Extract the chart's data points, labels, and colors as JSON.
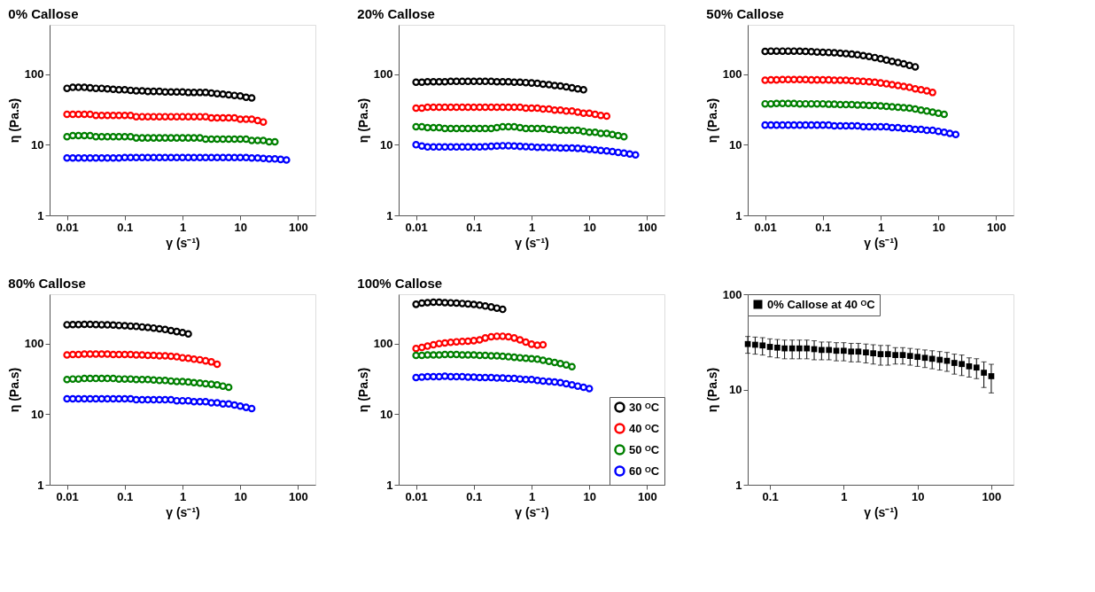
{
  "chart_data": [
    {
      "type": "scatter",
      "title": "0% Callose",
      "xlabel": "γ (s⁻¹)",
      "ylabel": "η (Pa.s)",
      "log": "xy",
      "marker": "circle",
      "xlim": [
        0.005,
        200
      ],
      "ylim": [
        1,
        500
      ],
      "xticks": [
        0.01,
        0.1,
        1,
        10,
        100
      ],
      "yticks": [
        1,
        10,
        100
      ],
      "series": [
        {
          "color": "#000000",
          "x": [
            0.01,
            0.0126,
            0.0158,
            0.02,
            0.0251,
            0.0316,
            0.0398,
            0.0501,
            0.0631,
            0.0794,
            0.1,
            0.126,
            0.158,
            0.2,
            0.251,
            0.316,
            0.398,
            0.501,
            0.631,
            0.794,
            1,
            1.26,
            1.58,
            2,
            2.51,
            3.16,
            3.98,
            5.01,
            6.31,
            7.94,
            10,
            12.6,
            15.8
          ],
          "values": [
            63,
            65,
            65,
            65,
            64,
            63,
            63,
            62,
            61,
            60,
            60,
            59,
            58,
            58,
            57,
            57,
            57,
            56,
            56,
            56,
            56,
            55,
            55,
            55,
            55,
            54,
            53,
            52,
            51,
            50,
            49,
            47,
            46
          ]
        },
        {
          "color": "#ff0000",
          "x": [
            0.01,
            0.0126,
            0.0158,
            0.02,
            0.0251,
            0.0316,
            0.0398,
            0.0501,
            0.0631,
            0.0794,
            0.1,
            0.126,
            0.158,
            0.2,
            0.251,
            0.316,
            0.398,
            0.501,
            0.631,
            0.794,
            1,
            1.26,
            1.58,
            2,
            2.51,
            3.16,
            3.98,
            5.01,
            6.31,
            7.94,
            10,
            12.6,
            15.8,
            20,
            25.1
          ],
          "values": [
            27,
            27,
            27,
            27,
            27,
            26,
            26,
            26,
            26,
            26,
            26,
            26,
            25,
            25,
            25,
            25,
            25,
            25,
            25,
            25,
            25,
            25,
            25,
            25,
            25,
            24,
            24,
            24,
            24,
            24,
            23,
            23,
            23,
            22,
            21
          ]
        },
        {
          "color": "#008000",
          "x": [
            0.01,
            0.0126,
            0.0158,
            0.02,
            0.0251,
            0.0316,
            0.0398,
            0.0501,
            0.0631,
            0.0794,
            0.1,
            0.126,
            0.158,
            0.2,
            0.251,
            0.316,
            0.398,
            0.501,
            0.631,
            0.794,
            1,
            1.26,
            1.58,
            2,
            2.51,
            3.16,
            3.98,
            5.01,
            6.31,
            7.94,
            10,
            12.6,
            15.8,
            20,
            25.1,
            31.6,
            39.8
          ],
          "values": [
            13,
            13.5,
            13.5,
            13.5,
            13.5,
            13,
            13,
            13,
            13,
            13,
            13,
            13,
            12.5,
            12.5,
            12.5,
            12.5,
            12.5,
            12.5,
            12.5,
            12.5,
            12.5,
            12.5,
            12.5,
            12.5,
            12,
            12,
            12,
            12,
            12,
            12,
            12,
            12,
            11.5,
            11.5,
            11.5,
            11,
            11
          ]
        },
        {
          "color": "#0000ff",
          "x": [
            0.01,
            0.0126,
            0.0158,
            0.02,
            0.0251,
            0.0316,
            0.0398,
            0.0501,
            0.0631,
            0.0794,
            0.1,
            0.126,
            0.158,
            0.2,
            0.251,
            0.316,
            0.398,
            0.501,
            0.631,
            0.794,
            1,
            1.26,
            1.58,
            2,
            2.51,
            3.16,
            3.98,
            5.01,
            6.31,
            7.94,
            10,
            12.6,
            15.8,
            20,
            25.1,
            31.6,
            39.8,
            50.1,
            63.1
          ],
          "values": [
            6.5,
            6.5,
            6.5,
            6.5,
            6.5,
            6.5,
            6.5,
            6.5,
            6.5,
            6.5,
            6.6,
            6.6,
            6.6,
            6.6,
            6.6,
            6.6,
            6.6,
            6.6,
            6.6,
            6.6,
            6.6,
            6.6,
            6.6,
            6.6,
            6.6,
            6.6,
            6.6,
            6.6,
            6.6,
            6.6,
            6.6,
            6.6,
            6.5,
            6.5,
            6.4,
            6.3,
            6.3,
            6.2,
            6.1
          ]
        }
      ]
    },
    {
      "type": "scatter",
      "title": "20% Callose",
      "xlabel": "γ (s⁻¹)",
      "ylabel": "η (Pa.s)",
      "log": "xy",
      "marker": "circle",
      "xlim": [
        0.005,
        200
      ],
      "ylim": [
        1,
        500
      ],
      "xticks": [
        0.01,
        0.1,
        1,
        10,
        100
      ],
      "yticks": [
        1,
        10,
        100
      ],
      "series": [
        {
          "color": "#000000",
          "x": [
            0.01,
            0.0126,
            0.0158,
            0.02,
            0.0251,
            0.0316,
            0.0398,
            0.0501,
            0.0631,
            0.0794,
            0.1,
            0.126,
            0.158,
            0.2,
            0.251,
            0.316,
            0.398,
            0.501,
            0.631,
            0.794,
            1,
            1.26,
            1.58,
            2,
            2.51,
            3.16,
            3.98,
            5.01,
            6.31,
            7.94
          ],
          "values": [
            77,
            77,
            78,
            78,
            78,
            78,
            79,
            79,
            79,
            79,
            79,
            79,
            79,
            79,
            78,
            78,
            78,
            77,
            77,
            76,
            75,
            74,
            72,
            71,
            69,
            68,
            66,
            64,
            62,
            60
          ]
        },
        {
          "color": "#ff0000",
          "x": [
            0.01,
            0.0126,
            0.0158,
            0.02,
            0.0251,
            0.0316,
            0.0398,
            0.0501,
            0.0631,
            0.0794,
            0.1,
            0.126,
            0.158,
            0.2,
            0.251,
            0.316,
            0.398,
            0.501,
            0.631,
            0.794,
            1,
            1.26,
            1.58,
            2,
            2.51,
            3.16,
            3.98,
            5.01,
            6.31,
            7.94,
            10,
            12.6,
            15.8,
            20
          ],
          "values": [
            33,
            33,
            34,
            34,
            34,
            34,
            34,
            34,
            34,
            34,
            34,
            34,
            34,
            34,
            34,
            34,
            34,
            34,
            34,
            33,
            33,
            33,
            32,
            32,
            31,
            31,
            30,
            30,
            29,
            28,
            28,
            27,
            26,
            25.5
          ]
        },
        {
          "color": "#008000",
          "x": [
            0.01,
            0.0126,
            0.0158,
            0.02,
            0.0251,
            0.0316,
            0.0398,
            0.0501,
            0.0631,
            0.0794,
            0.1,
            0.126,
            0.158,
            0.2,
            0.251,
            0.316,
            0.398,
            0.501,
            0.631,
            0.794,
            1,
            1.26,
            1.58,
            2,
            2.51,
            3.16,
            3.98,
            5.01,
            6.31,
            7.94,
            10,
            12.6,
            15.8,
            20,
            25.1,
            31.6,
            39.8
          ],
          "values": [
            18,
            18,
            17.5,
            17.5,
            17.5,
            17,
            17,
            17,
            17,
            17,
            17,
            17,
            17,
            17,
            17.5,
            18,
            18,
            18,
            17.5,
            17,
            17,
            17,
            17,
            16.5,
            16.5,
            16,
            16,
            16,
            16,
            15.5,
            15,
            15,
            14.5,
            14.5,
            14,
            13.5,
            13
          ]
        },
        {
          "color": "#0000ff",
          "x": [
            0.01,
            0.0126,
            0.0158,
            0.02,
            0.0251,
            0.0316,
            0.0398,
            0.0501,
            0.0631,
            0.0794,
            0.1,
            0.126,
            0.158,
            0.2,
            0.251,
            0.316,
            0.398,
            0.501,
            0.631,
            0.794,
            1,
            1.26,
            1.58,
            2,
            2.51,
            3.16,
            3.98,
            5.01,
            6.31,
            7.94,
            10,
            12.6,
            15.8,
            20,
            25.1,
            31.6,
            39.8,
            50.1,
            63.1
          ],
          "values": [
            10,
            9.6,
            9.3,
            9.3,
            9.3,
            9.3,
            9.3,
            9.3,
            9.3,
            9.3,
            9.3,
            9.3,
            9.4,
            9.5,
            9.6,
            9.7,
            9.7,
            9.6,
            9.5,
            9.4,
            9.3,
            9.2,
            9.2,
            9.1,
            9.1,
            9,
            9,
            9,
            8.9,
            8.8,
            8.6,
            8.5,
            8.3,
            8.2,
            8,
            7.8,
            7.6,
            7.4,
            7.2
          ]
        }
      ]
    },
    {
      "type": "scatter",
      "title": "50% Callose",
      "xlabel": "γ (s⁻¹)",
      "ylabel": "η (Pa.s)",
      "log": "xy",
      "marker": "circle",
      "xlim": [
        0.005,
        200
      ],
      "ylim": [
        1,
        500
      ],
      "xticks": [
        0.01,
        0.1,
        1,
        10,
        100
      ],
      "yticks": [
        1,
        10,
        100
      ],
      "series": [
        {
          "color": "#000000",
          "x": [
            0.01,
            0.0126,
            0.0158,
            0.02,
            0.0251,
            0.0316,
            0.0398,
            0.0501,
            0.0631,
            0.0794,
            0.1,
            0.126,
            0.158,
            0.2,
            0.251,
            0.316,
            0.398,
            0.501,
            0.631,
            0.794,
            1,
            1.26,
            1.58,
            2,
            2.51,
            3.16,
            3.98
          ],
          "values": [
            210,
            212,
            212,
            212,
            212,
            212,
            211,
            210,
            208,
            206,
            204,
            203,
            201,
            198,
            195,
            192,
            188,
            183,
            178,
            172,
            165,
            158,
            152,
            146,
            140,
            133,
            127
          ]
        },
        {
          "color": "#ff0000",
          "x": [
            0.01,
            0.0126,
            0.0158,
            0.02,
            0.0251,
            0.0316,
            0.0398,
            0.0501,
            0.0631,
            0.0794,
            0.1,
            0.126,
            0.158,
            0.2,
            0.251,
            0.316,
            0.398,
            0.501,
            0.631,
            0.794,
            1,
            1.26,
            1.58,
            2,
            2.51,
            3.16,
            3.98,
            5.01,
            6.31,
            7.94
          ],
          "values": [
            82,
            83,
            83,
            84,
            84,
            84,
            84,
            84,
            83,
            83,
            83,
            83,
            82,
            82,
            82,
            81,
            80,
            79,
            78,
            77,
            75,
            73,
            71,
            69,
            67,
            65,
            62,
            60,
            58,
            55
          ]
        },
        {
          "color": "#008000",
          "x": [
            0.01,
            0.0126,
            0.0158,
            0.02,
            0.0251,
            0.0316,
            0.0398,
            0.0501,
            0.0631,
            0.0794,
            0.1,
            0.126,
            0.158,
            0.2,
            0.251,
            0.316,
            0.398,
            0.501,
            0.631,
            0.794,
            1,
            1.26,
            1.58,
            2,
            2.51,
            3.16,
            3.98,
            5.01,
            6.31,
            7.94,
            10,
            12.6
          ],
          "values": [
            38,
            38,
            38.5,
            38.5,
            38.5,
            38.5,
            38,
            38,
            38,
            38,
            38,
            37.5,
            37.5,
            37,
            37,
            37,
            36.5,
            36.5,
            36,
            36,
            35.5,
            35,
            34.5,
            34,
            33.5,
            33,
            32,
            31,
            30,
            29,
            28,
            27
          ]
        },
        {
          "color": "#0000ff",
          "x": [
            0.01,
            0.0126,
            0.0158,
            0.02,
            0.0251,
            0.0316,
            0.0398,
            0.0501,
            0.0631,
            0.0794,
            0.1,
            0.126,
            0.158,
            0.2,
            0.251,
            0.316,
            0.398,
            0.501,
            0.631,
            0.794,
            1,
            1.26,
            1.58,
            2,
            2.51,
            3.16,
            3.98,
            5.01,
            6.31,
            7.94,
            10,
            12.6,
            15.8,
            20
          ],
          "values": [
            19,
            19,
            19,
            19,
            19,
            19,
            19,
            19,
            19,
            19,
            19,
            19,
            18.5,
            18.5,
            18.5,
            18.5,
            18.5,
            18,
            18,
            18,
            18,
            18,
            17.5,
            17.5,
            17,
            17,
            16.5,
            16.5,
            16,
            16,
            15.5,
            15,
            14.5,
            14
          ]
        }
      ]
    },
    {
      "type": "scatter",
      "title": "80% Callose",
      "xlabel": "γ (s⁻¹)",
      "ylabel": "η (Pa.s)",
      "log": "xy",
      "marker": "circle",
      "xlim": [
        0.005,
        200
      ],
      "ylim": [
        1,
        500
      ],
      "xticks": [
        0.01,
        0.1,
        1,
        10,
        100
      ],
      "yticks": [
        1,
        10,
        100
      ],
      "series": [
        {
          "color": "#000000",
          "x": [
            0.01,
            0.0126,
            0.0158,
            0.02,
            0.0251,
            0.0316,
            0.0398,
            0.0501,
            0.0631,
            0.0794,
            0.1,
            0.126,
            0.158,
            0.2,
            0.251,
            0.316,
            0.398,
            0.501,
            0.631,
            0.794,
            1,
            1.26
          ],
          "values": [
            185,
            186,
            186,
            187,
            187,
            186,
            185,
            184,
            183,
            181,
            179,
            177,
            175,
            172,
            169,
            166,
            162,
            158,
            153,
            148,
            143,
            137
          ]
        },
        {
          "color": "#ff0000",
          "x": [
            0.01,
            0.0126,
            0.0158,
            0.02,
            0.0251,
            0.0316,
            0.0398,
            0.0501,
            0.0631,
            0.0794,
            0.1,
            0.126,
            0.158,
            0.2,
            0.251,
            0.316,
            0.398,
            0.501,
            0.631,
            0.794,
            1,
            1.26,
            1.58,
            2,
            2.51,
            3.16,
            3.98
          ],
          "values": [
            69,
            70,
            70,
            71,
            71,
            71,
            71,
            71,
            70,
            70,
            70,
            70,
            69,
            69,
            68,
            68,
            67,
            67,
            66,
            65,
            63,
            62,
            60,
            59,
            57,
            55,
            51
          ]
        },
        {
          "color": "#008000",
          "x": [
            0.01,
            0.0126,
            0.0158,
            0.02,
            0.0251,
            0.0316,
            0.0398,
            0.0501,
            0.0631,
            0.0794,
            0.1,
            0.126,
            0.158,
            0.2,
            0.251,
            0.316,
            0.398,
            0.501,
            0.631,
            0.794,
            1,
            1.26,
            1.58,
            2,
            2.51,
            3.16,
            3.98,
            5.01,
            6.31
          ],
          "values": [
            31,
            31.5,
            31.5,
            32,
            32,
            32,
            32,
            32,
            32,
            31.5,
            31.5,
            31.5,
            31,
            31,
            31,
            30.5,
            30,
            30,
            29.5,
            29,
            29,
            28.5,
            28,
            27.5,
            27,
            26.5,
            26,
            25,
            24
          ]
        },
        {
          "color": "#0000ff",
          "x": [
            0.01,
            0.0126,
            0.0158,
            0.02,
            0.0251,
            0.0316,
            0.0398,
            0.0501,
            0.0631,
            0.0794,
            0.1,
            0.126,
            0.158,
            0.2,
            0.251,
            0.316,
            0.398,
            0.501,
            0.631,
            0.794,
            1,
            1.26,
            1.58,
            2,
            2.51,
            3.16,
            3.98,
            5.01,
            6.31,
            7.94,
            10,
            12.6,
            15.8
          ],
          "values": [
            16.5,
            16.5,
            16.5,
            16.5,
            16.5,
            16.5,
            16.5,
            16.5,
            16.5,
            16.5,
            16.5,
            16.5,
            16,
            16,
            16,
            16,
            16,
            16,
            16,
            15.5,
            15.5,
            15.5,
            15,
            15,
            15,
            14.5,
            14.5,
            14,
            14,
            13.5,
            13,
            12.5,
            12
          ]
        }
      ]
    },
    {
      "type": "scatter",
      "title": "100% Callose",
      "xlabel": "γ (s⁻¹)",
      "ylabel": "η (Pa.s)",
      "log": "xy",
      "marker": "circle",
      "legend": "bottom right",
      "xlim": [
        0.005,
        200
      ],
      "ylim": [
        1,
        500
      ],
      "xticks": [
        0.01,
        0.1,
        1,
        10,
        100
      ],
      "yticks": [
        1,
        10,
        100
      ],
      "series": [
        {
          "name": "30 ᴼC",
          "color": "#000000",
          "x": [
            0.01,
            0.0126,
            0.0158,
            0.02,
            0.0251,
            0.0316,
            0.0398,
            0.0501,
            0.0631,
            0.0794,
            0.1,
            0.126,
            0.158,
            0.2,
            0.251,
            0.316
          ],
          "values": [
            360,
            375,
            380,
            385,
            385,
            380,
            378,
            375,
            370,
            365,
            358,
            350,
            340,
            330,
            318,
            305
          ]
        },
        {
          "name": "40 ᴼC",
          "color": "#ff0000",
          "x": [
            0.01,
            0.0126,
            0.0158,
            0.02,
            0.0251,
            0.0316,
            0.0398,
            0.0501,
            0.0631,
            0.0794,
            0.1,
            0.126,
            0.158,
            0.2,
            0.251,
            0.316,
            0.398,
            0.501,
            0.631,
            0.794,
            1,
            1.26,
            1.58
          ],
          "values": [
            85,
            88,
            92,
            96,
            100,
            102,
            104,
            106,
            107,
            108,
            110,
            113,
            120,
            125,
            127,
            127,
            125,
            120,
            113,
            105,
            98,
            95,
            96
          ]
        },
        {
          "name": "50 ᴼC",
          "color": "#008000",
          "x": [
            0.01,
            0.0126,
            0.0158,
            0.02,
            0.0251,
            0.0316,
            0.0398,
            0.0501,
            0.0631,
            0.0794,
            0.1,
            0.126,
            0.158,
            0.2,
            0.251,
            0.316,
            0.398,
            0.501,
            0.631,
            0.794,
            1,
            1.26,
            1.58,
            2,
            2.51,
            3.16,
            3.98,
            5.01
          ],
          "values": [
            68,
            68,
            69,
            69,
            69,
            70,
            70,
            70,
            69,
            69,
            69,
            68,
            68,
            67,
            67,
            66,
            65,
            64,
            63,
            62,
            61,
            60,
            58,
            56,
            54,
            52,
            50,
            47
          ]
        },
        {
          "name": "60 ᴼC",
          "color": "#0000ff",
          "x": [
            0.01,
            0.0126,
            0.0158,
            0.02,
            0.0251,
            0.0316,
            0.0398,
            0.0501,
            0.0631,
            0.0794,
            0.1,
            0.126,
            0.158,
            0.2,
            0.251,
            0.316,
            0.398,
            0.501,
            0.631,
            0.794,
            1,
            1.26,
            1.58,
            2,
            2.51,
            3.16,
            3.98,
            5.01,
            6.31,
            7.94,
            10
          ],
          "values": [
            33,
            33.5,
            34,
            34,
            34,
            34.5,
            34,
            34,
            34,
            33.5,
            33.5,
            33,
            33,
            33,
            32.5,
            32.5,
            32,
            32,
            31.5,
            31,
            31,
            30,
            29.5,
            29,
            28.5,
            28,
            27,
            26,
            25,
            24,
            23
          ]
        }
      ]
    },
    {
      "type": "scatter",
      "xlabel": "γ (s⁻¹)",
      "ylabel": "η (Pa.s)",
      "log": "xy",
      "marker": "square",
      "legend": "top left",
      "xlim": [
        0.05,
        200
      ],
      "ylim": [
        1,
        100
      ],
      "xticks": [
        0.1,
        1,
        10,
        100
      ],
      "yticks": [
        1,
        10,
        100
      ],
      "series": [
        {
          "name": "0% Callose at 40 ᴼC",
          "color": "#000000",
          "x": [
            0.0501,
            0.0631,
            0.0794,
            0.1,
            0.126,
            0.158,
            0.2,
            0.251,
            0.316,
            0.398,
            0.501,
            0.631,
            0.794,
            1,
            1.26,
            1.58,
            2,
            2.51,
            3.16,
            3.98,
            5.01,
            6.31,
            7.94,
            10,
            12.6,
            15.8,
            20,
            25.1,
            31.6,
            39.8,
            50.1,
            63.1,
            79.4,
            100
          ],
          "values": [
            30,
            29.5,
            29,
            28,
            27.5,
            27,
            27,
            27,
            27,
            26.5,
            26,
            26,
            25.5,
            25.5,
            25,
            25,
            24.5,
            24,
            23.5,
            23.5,
            23,
            23,
            22.5,
            22,
            21.5,
            21,
            20.5,
            20,
            19,
            18.5,
            17.5,
            17,
            15,
            13.8
          ],
          "errors": [
            6,
            6,
            6,
            6,
            6,
            6,
            6,
            6,
            6,
            6,
            5.5,
            5.5,
            5.5,
            5.5,
            5.5,
            5.5,
            5.5,
            5.5,
            5.5,
            5.5,
            4.5,
            4.5,
            4.5,
            4.5,
            4.5,
            4.5,
            4.5,
            4.5,
            4.5,
            4.5,
            4,
            4,
            4.5,
            4.6
          ]
        }
      ]
    }
  ]
}
